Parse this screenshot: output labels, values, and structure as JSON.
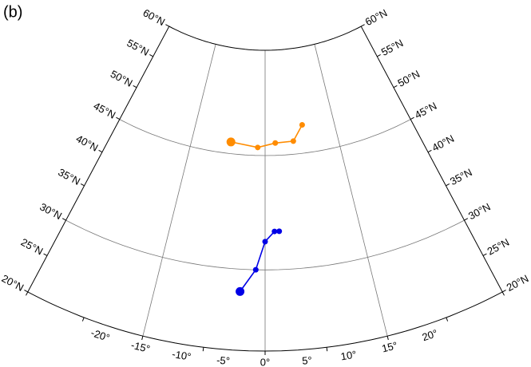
{
  "panel_label": "(b)",
  "map": {
    "lon_range": [
      -20,
      20
    ],
    "lat_range": [
      20,
      60
    ],
    "lat_ticks": [
      {
        "value": 20,
        "label": "20°N"
      },
      {
        "value": 25,
        "label": "25°N"
      },
      {
        "value": 30,
        "label": "30°N"
      },
      {
        "value": 35,
        "label": "35°N"
      },
      {
        "value": 40,
        "label": "40°N"
      },
      {
        "value": 45,
        "label": "45°N"
      },
      {
        "value": 50,
        "label": "50°N"
      },
      {
        "value": 55,
        "label": "55°N"
      },
      {
        "value": 60,
        "label": "60°N"
      }
    ],
    "lon_ticks": [
      {
        "value": -20,
        "label": "-20°"
      },
      {
        "value": -15,
        "label": "-15°"
      },
      {
        "value": -10,
        "label": "-10°"
      },
      {
        "value": -5,
        "label": "-5°"
      },
      {
        "value": 0,
        "label": "0°"
      },
      {
        "value": 5,
        "label": "5°"
      },
      {
        "value": 10,
        "label": "10°"
      },
      {
        "value": 15,
        "label": "15°"
      },
      {
        "value": 20,
        "label": "20°"
      }
    ],
    "grid_lons": [
      -10,
      0,
      10
    ],
    "grid_lats": [
      30,
      45
    ]
  },
  "tracks": [
    {
      "color": "#ff8c00",
      "lon": [
        -4.7,
        -1.0,
        1.4,
        3.9,
        5.4
      ],
      "lat": [
        46.6,
        46.1,
        46.7,
        46.8,
        48.9
      ]
    },
    {
      "color": "#0000e6",
      "lon": [
        -2.3,
        -0.9,
        0.0,
        1.0,
        1.5
      ],
      "lat": [
        27.2,
        30.0,
        33.6,
        34.9,
        34.9
      ]
    }
  ]
}
